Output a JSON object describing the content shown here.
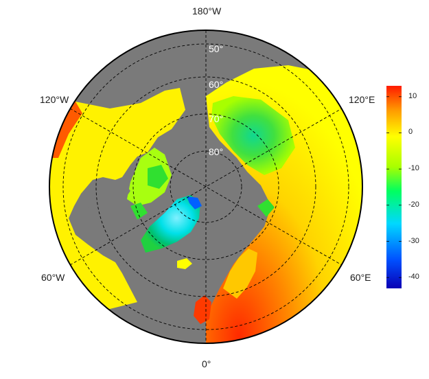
{
  "map": {
    "projection": "north-polar-stereographic",
    "longitude_labels": {
      "top": "180°W",
      "bottom": "0°",
      "upper_left": "120°W",
      "upper_right": "120°E",
      "lower_left": "60°W",
      "lower_right": "60°E"
    },
    "latitude_labels": [
      "50°",
      "60°",
      "70°",
      "80°"
    ],
    "ocean_color": "#7a7a7a",
    "graticule_style": "dashed-black"
  },
  "colorbar": {
    "ticks": [
      "10",
      "0",
      "-10",
      "-20",
      "-30",
      "-40"
    ],
    "tick_values": [
      10,
      0,
      -10,
      -20,
      -30,
      -40
    ],
    "min": -43,
    "max": 13,
    "colors": [
      "#0a00b4",
      "#0050ff",
      "#00d8ff",
      "#00ff60",
      "#a8ff00",
      "#ffff00",
      "#ff9a00",
      "#ff1a00"
    ]
  }
}
